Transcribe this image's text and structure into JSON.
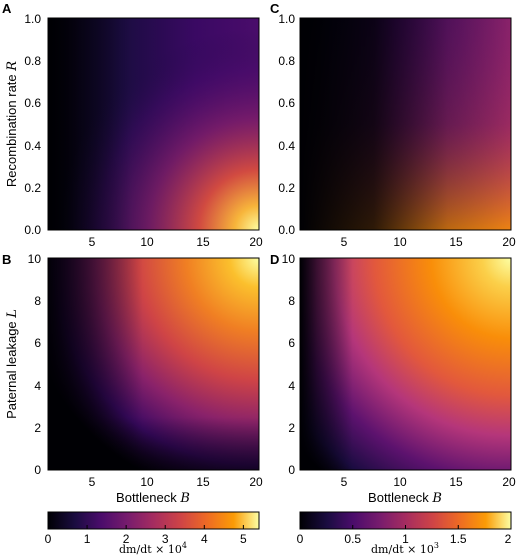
{
  "chart_data": [
    {
      "type": "heatmap",
      "panel_letter": "A",
      "xlabel": "Bottleneck B",
      "ylabel": "Recombination rate R",
      "xlim": [
        1,
        20
      ],
      "ylim": [
        0.0,
        1.0
      ],
      "xticks": [
        "5",
        "10",
        "15",
        "20"
      ],
      "yticks": [
        "0.0",
        "0.2",
        "0.4",
        "0.6",
        "0.8",
        "1.0"
      ],
      "colormap": "inferno",
      "colorbar": "left",
      "description_values": {
        "min_at": [
          1,
          1.0
        ],
        "max_at": [
          20,
          0.0
        ]
      }
    },
    {
      "type": "heatmap",
      "panel_letter": "C",
      "xlabel": "",
      "ylabel": "",
      "xlim": [
        1,
        20
      ],
      "ylim": [
        0.0,
        1.0
      ],
      "xticks": [
        "5",
        "10",
        "15",
        "20"
      ],
      "yticks": [
        "0.0",
        "0.2",
        "0.4",
        "0.6",
        "0.8",
        "1.0"
      ],
      "colormap": "inferno",
      "colorbar": "right"
    },
    {
      "type": "heatmap",
      "panel_letter": "B",
      "xlabel": "Bottleneck B",
      "ylabel": "Paternal leakage L",
      "xlim": [
        1,
        20
      ],
      "ylim": [
        0,
        10
      ],
      "xticks": [
        "5",
        "10",
        "15",
        "20"
      ],
      "yticks": [
        "0",
        "2",
        "4",
        "6",
        "8",
        "10"
      ],
      "colormap": "inferno",
      "colorbar": "left"
    },
    {
      "type": "heatmap",
      "panel_letter": "D",
      "xlabel": "Bottleneck B",
      "ylabel": "",
      "xlim": [
        1,
        20
      ],
      "ylim": [
        0,
        10
      ],
      "xticks": [
        "5",
        "10",
        "15",
        "20"
      ],
      "yticks": [
        "0",
        "2",
        "4",
        "6",
        "8",
        "10"
      ],
      "colormap": "inferno",
      "colorbar": "right"
    }
  ],
  "colorbars": [
    {
      "label": "dm/dt × 10^4",
      "range": [
        0,
        5.4
      ],
      "ticks": [
        "0",
        "1",
        "2",
        "3",
        "4",
        "5"
      ],
      "tick_values": [
        0,
        1,
        2,
        3,
        4,
        5
      ]
    },
    {
      "label": "dm/dt × 10^3",
      "range": [
        0,
        2
      ],
      "ticks": [
        "0",
        "0.5",
        "1",
        "1.5",
        "2"
      ],
      "tick_values": [
        0,
        0.5,
        1,
        1.5,
        2
      ]
    }
  ],
  "labels": {
    "a": "A",
    "b": "B",
    "c": "C",
    "d": "D",
    "bottleneck": "Bottleneck",
    "recombination": "Recombination rate",
    "paternal": "Paternal leakage",
    "var_b": "B",
    "var_r": "R",
    "var_l": "L",
    "cb_left_prefix": "dm/dt × 10",
    "cb_left_exp": "4",
    "cb_right_prefix": "dm/dt × 10",
    "cb_right_exp": "3"
  }
}
